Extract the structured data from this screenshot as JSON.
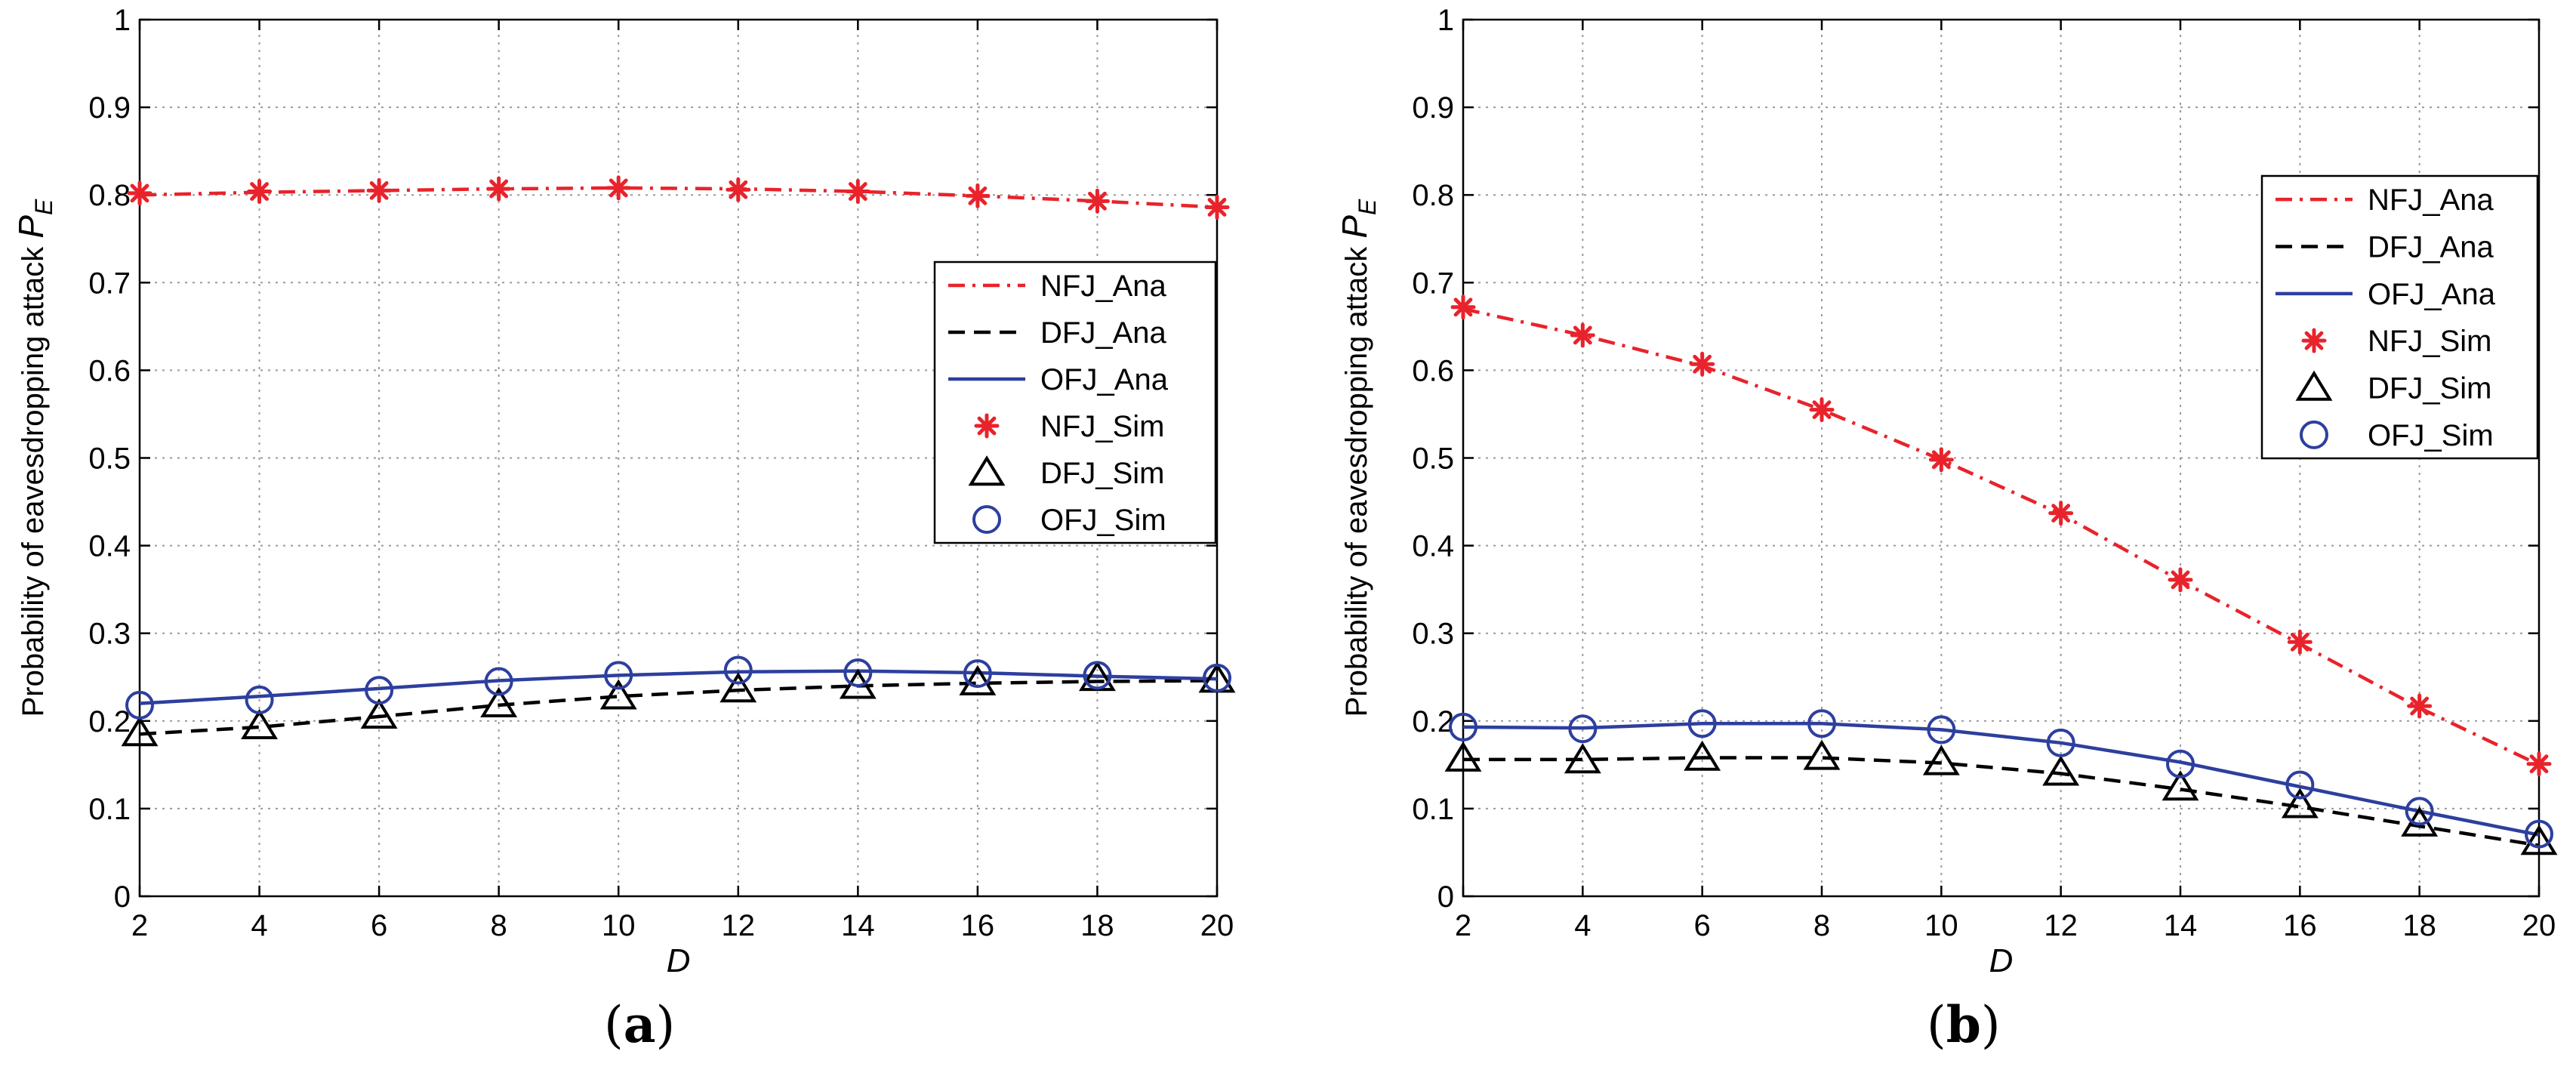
{
  "figure": {
    "panels": [
      {
        "label_open": "(",
        "label_letter": "a",
        "label_close": ")"
      },
      {
        "label_open": "(",
        "label_letter": "b",
        "label_close": ")"
      }
    ]
  },
  "chart_data": [
    {
      "type": "line",
      "title": "",
      "xlabel": "D",
      "ylabel": "Probability of eavesdropping attack",
      "ylabel_symbol": "P",
      "ylabel_subscript": "E",
      "xlim": [
        2,
        20
      ],
      "ylim": [
        0,
        1
      ],
      "xticks": [
        2,
        4,
        6,
        8,
        10,
        12,
        14,
        16,
        18,
        20
      ],
      "yticks": [
        0,
        0.1,
        0.2,
        0.3,
        0.4,
        0.5,
        0.6,
        0.7,
        0.8,
        0.9,
        1
      ],
      "grid": true,
      "legend_position": "right-middle",
      "x": [
        2,
        4,
        6,
        8,
        10,
        12,
        14,
        16,
        18,
        20
      ],
      "series": [
        {
          "name": "NFJ_Ana",
          "kind": "line",
          "style": "dashdot",
          "color": "#e8232b",
          "values": [
            0.8,
            0.803,
            0.805,
            0.807,
            0.808,
            0.807,
            0.804,
            0.799,
            0.793,
            0.786
          ]
        },
        {
          "name": "DFJ_Ana",
          "kind": "line",
          "style": "dashed",
          "color": "#000000",
          "values": [
            0.185,
            0.193,
            0.205,
            0.218,
            0.228,
            0.235,
            0.24,
            0.243,
            0.245,
            0.246
          ]
        },
        {
          "name": "OFJ_Ana",
          "kind": "line",
          "style": "solid",
          "color": "#2d3f9e",
          "values": [
            0.22,
            0.228,
            0.237,
            0.246,
            0.252,
            0.256,
            0.257,
            0.255,
            0.251,
            0.248
          ]
        },
        {
          "name": "NFJ_Sim",
          "kind": "marker",
          "marker": "star",
          "color": "#e8232b",
          "values": [
            0.802,
            0.804,
            0.805,
            0.807,
            0.808,
            0.806,
            0.804,
            0.799,
            0.793,
            0.786
          ]
        },
        {
          "name": "DFJ_Sim",
          "kind": "marker",
          "marker": "triangle",
          "color": "#000000",
          "values": [
            0.186,
            0.194,
            0.206,
            0.219,
            0.228,
            0.236,
            0.24,
            0.244,
            0.249,
            0.247
          ]
        },
        {
          "name": "OFJ_Sim",
          "kind": "marker",
          "marker": "circle",
          "color": "#2d3f9e",
          "values": [
            0.218,
            0.224,
            0.235,
            0.245,
            0.252,
            0.258,
            0.255,
            0.254,
            0.252,
            0.249
          ]
        }
      ]
    },
    {
      "type": "line",
      "title": "",
      "xlabel": "D",
      "ylabel": "Probability of eavesdropping attack",
      "ylabel_symbol": "P",
      "ylabel_subscript": "E",
      "xlim": [
        2,
        20
      ],
      "ylim": [
        0,
        1
      ],
      "xticks": [
        2,
        4,
        6,
        8,
        10,
        12,
        14,
        16,
        18,
        20
      ],
      "yticks": [
        0,
        0.1,
        0.2,
        0.3,
        0.4,
        0.5,
        0.6,
        0.7,
        0.8,
        0.9,
        1
      ],
      "grid": true,
      "legend_position": "top-right",
      "x": [
        2,
        4,
        6,
        8,
        10,
        12,
        14,
        16,
        18,
        20
      ],
      "series": [
        {
          "name": "NFJ_Ana",
          "kind": "line",
          "style": "dashdot",
          "color": "#e8232b",
          "values": [
            0.67,
            0.64,
            0.605,
            0.555,
            0.498,
            0.436,
            0.36,
            0.288,
            0.215,
            0.15
          ]
        },
        {
          "name": "DFJ_Ana",
          "kind": "line",
          "style": "dashed",
          "color": "#000000",
          "values": [
            0.156,
            0.156,
            0.158,
            0.158,
            0.152,
            0.14,
            0.122,
            0.102,
            0.08,
            0.058
          ]
        },
        {
          "name": "OFJ_Ana",
          "kind": "line",
          "style": "solid",
          "color": "#2d3f9e",
          "values": [
            0.193,
            0.192,
            0.197,
            0.197,
            0.19,
            0.175,
            0.153,
            0.125,
            0.097,
            0.07
          ]
        },
        {
          "name": "NFJ_Sim",
          "kind": "marker",
          "marker": "star",
          "color": "#e8232b",
          "values": [
            0.672,
            0.64,
            0.607,
            0.555,
            0.498,
            0.437,
            0.361,
            0.29,
            0.217,
            0.151
          ]
        },
        {
          "name": "DFJ_Sim",
          "kind": "marker",
          "marker": "triangle",
          "color": "#000000",
          "values": [
            0.157,
            0.155,
            0.158,
            0.159,
            0.153,
            0.141,
            0.124,
            0.104,
            0.083,
            0.062
          ]
        },
        {
          "name": "OFJ_Sim",
          "kind": "marker",
          "marker": "circle",
          "color": "#2d3f9e",
          "values": [
            0.193,
            0.191,
            0.197,
            0.197,
            0.19,
            0.175,
            0.151,
            0.127,
            0.097,
            0.071
          ]
        }
      ]
    }
  ]
}
